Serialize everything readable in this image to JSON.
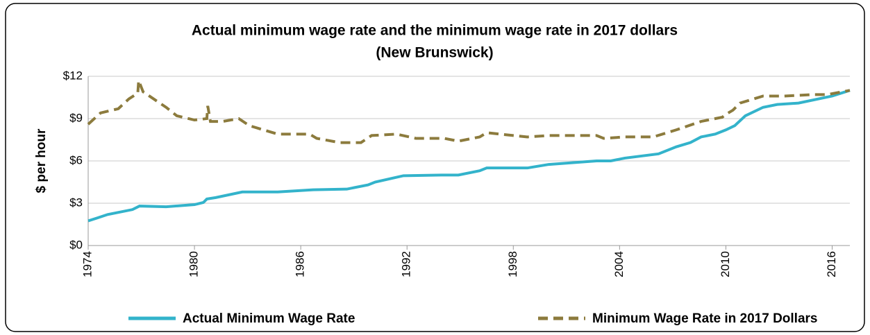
{
  "chart_data": {
    "type": "line",
    "title": "Actual minimum wage rate and the minimum wage rate in 2017 dollars",
    "subtitle": "(New Brunswick)",
    "ylabel": "$ per hour",
    "xlim": [
      1974,
      2017
    ],
    "xticks": [
      1974,
      1980,
      1986,
      1992,
      1998,
      2004,
      2010,
      2016
    ],
    "ylim": [
      0,
      12
    ],
    "yticks": [
      {
        "value": 0,
        "label": "$0"
      },
      {
        "value": 3,
        "label": "$3"
      },
      {
        "value": 6,
        "label": "$6"
      },
      {
        "value": 9,
        "label": "$9"
      },
      {
        "value": 12,
        "label": "$12"
      }
    ],
    "grid": true,
    "legend": "bottom",
    "series": [
      {
        "name": "Actual Minimum Wage Rate",
        "color": "#33b3cb",
        "dash": false,
        "x": [
          1974,
          1974.5,
          1975.1,
          1976.5,
          1976.9,
          1978.4,
          1980,
          1980.5,
          1980.7,
          1981.2,
          1982.7,
          1984.7,
          1986.7,
          1988.6,
          1989.8,
          1990.2,
          1991.8,
          1994.1,
          1994.9,
          1996.1,
          1996.5,
          1998.8,
          2000,
          2002.7,
          2003.5,
          2004.3,
          2006.2,
          2007.2,
          2008,
          2008.6,
          2009.4,
          2010,
          2010.5,
          2011.1,
          2012.1,
          2012.9,
          2014.1,
          2016,
          2017
        ],
        "values": [
          1.75,
          1.95,
          2.2,
          2.55,
          2.8,
          2.75,
          2.9,
          3.05,
          3.3,
          3.4,
          3.8,
          3.8,
          3.95,
          4.0,
          4.3,
          4.5,
          4.95,
          5.0,
          5.0,
          5.3,
          5.5,
          5.5,
          5.75,
          6.0,
          6.0,
          6.2,
          6.5,
          7.0,
          7.3,
          7.7,
          7.9,
          8.2,
          8.5,
          9.2,
          9.8,
          10.0,
          10.1,
          10.6,
          11.0
        ]
      },
      {
        "name": "Minimum Wage Rate in 2017 Dollars",
        "color": "#8c7b3d",
        "dash": true,
        "x": [
          1974,
          1974.7,
          1975.7,
          1976.3,
          1976.8,
          1976.85,
          1977.1,
          1978.4,
          1979,
          1980,
          1980.7,
          1980.75,
          1980.9,
          1981.6,
          1982.5,
          1983.1,
          1984.7,
          1985.9,
          1986.5,
          1986.9,
          1988.2,
          1989.4,
          1990,
          1991.4,
          1992.5,
          1994.1,
          1994.9,
          1996.1,
          1996.5,
          1998,
          1998.8,
          2000,
          2002.7,
          2003.1,
          2004.3,
          2005.9,
          2007.2,
          2008.6,
          2009.8,
          2010,
          2010.4,
          2010.8,
          2012.1,
          2013.3,
          2014.9,
          2015.7,
          2017
        ],
        "values": [
          8.6,
          9.4,
          9.7,
          10.4,
          10.8,
          11.7,
          10.9,
          9.8,
          9.2,
          8.9,
          9.0,
          9.9,
          8.8,
          8.8,
          9.0,
          8.5,
          7.9,
          7.9,
          7.9,
          7.6,
          7.3,
          7.3,
          7.8,
          7.9,
          7.6,
          7.6,
          7.4,
          7.7,
          8.0,
          7.8,
          7.7,
          7.8,
          7.8,
          7.6,
          7.7,
          7.7,
          8.2,
          8.8,
          9.1,
          9.3,
          9.6,
          10.1,
          10.6,
          10.6,
          10.7,
          10.7,
          11.0
        ]
      }
    ]
  }
}
